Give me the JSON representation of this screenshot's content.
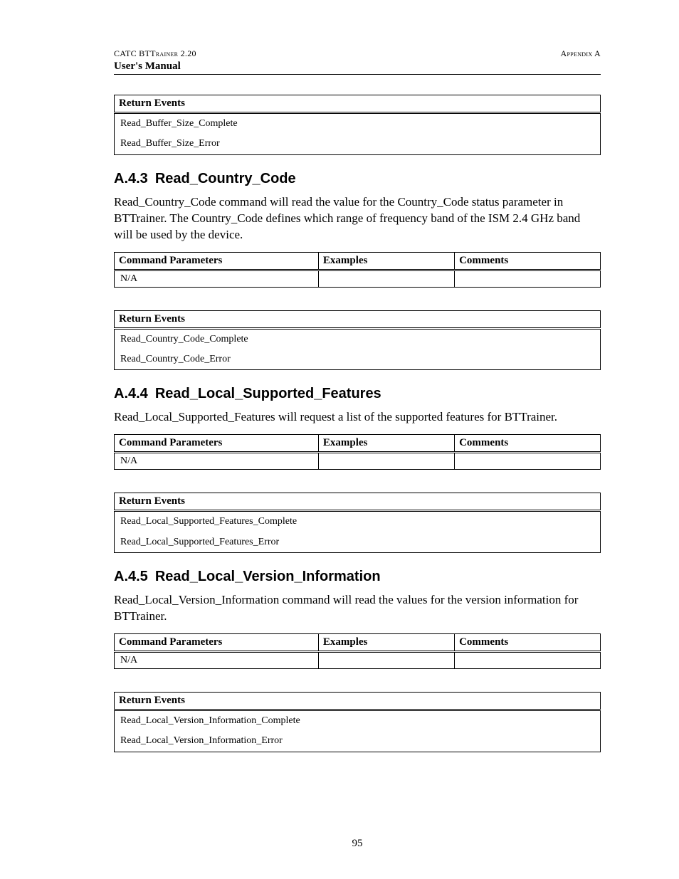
{
  "header": {
    "left": "CATC BTTrainer 2.20",
    "right": "Appendix A",
    "sub": "User's Manual"
  },
  "top_events_table": {
    "header": "Return Events",
    "events": [
      "Read_Buffer_Size_Complete",
      "Read_Buffer_Size_Error"
    ]
  },
  "sections": [
    {
      "number": "A.4.3",
      "title": "Read_Country_Code",
      "paragraph": "Read_Country_Code command will read the value for the Country_Code status parameter in BTTrainer. The Country_Code defines which range of frequency band of the ISM 2.4 GHz band will be used by the device.",
      "params_headers": [
        "Command Parameters",
        "Examples",
        "Comments"
      ],
      "params_rows": [
        [
          "N/A",
          "",
          ""
        ]
      ],
      "events_header": "Return Events",
      "events": [
        "Read_Country_Code_Complete",
        "Read_Country_Code_Error"
      ]
    },
    {
      "number": "A.4.4",
      "title": "Read_Local_Supported_Features",
      "paragraph": "Read_Local_Supported_Features will request a list of the supported features for BTTrainer.",
      "params_headers": [
        "Command Parameters",
        "Examples",
        "Comments"
      ],
      "params_rows": [
        [
          "N/A",
          "",
          ""
        ]
      ],
      "events_header": "Return Events",
      "events": [
        "Read_Local_Supported_Features_Complete",
        "Read_Local_Supported_Features_Error"
      ]
    },
    {
      "number": "A.4.5",
      "title": "Read_Local_Version_Information",
      "paragraph": "Read_Local_Version_Information command will read the values for the version information for BTTrainer.",
      "params_headers": [
        "Command Parameters",
        "Examples",
        "Comments"
      ],
      "params_rows": [
        [
          "N/A",
          "",
          ""
        ]
      ],
      "events_header": "Return Events",
      "events": [
        "Read_Local_Version_Information_Complete",
        "Read_Local_Version_Information_Error"
      ]
    }
  ],
  "page_number": "95"
}
